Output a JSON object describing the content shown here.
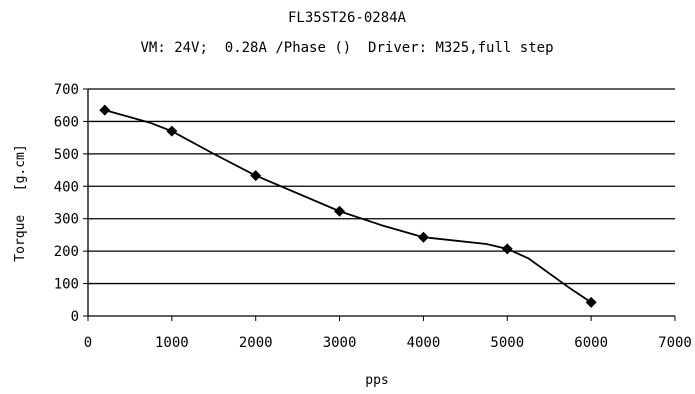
{
  "chart_data": {
    "type": "line",
    "title": "FL35ST26-0284A",
    "subtitle": "VM: 24V;  0.28A /Phase ()  Driver: M325,full step",
    "xlabel": "pps",
    "ylabel": "Torque   [g.cm]",
    "xlim": [
      0,
      7000
    ],
    "ylim": [
      0,
      700
    ],
    "xticks": [
      0,
      1000,
      2000,
      3000,
      4000,
      5000,
      6000,
      7000
    ],
    "yticks": [
      0,
      100,
      200,
      300,
      400,
      500,
      600,
      700
    ],
    "grid": "horizontal",
    "legend": "none",
    "series": [
      {
        "x": [
          200,
          1000,
          2000,
          3000,
          4000,
          5000,
          6000
        ],
        "y": [
          635,
          570,
          433,
          323,
          243,
          207,
          42
        ],
        "marker": "diamond",
        "color": "#000000"
      }
    ],
    "curve": {
      "x": [
        200,
        750,
        1000,
        1500,
        2000,
        3000,
        3500,
        4000,
        4750,
        5000,
        5250,
        5750,
        6000
      ],
      "y": [
        635,
        595,
        570,
        500,
        433,
        323,
        280,
        243,
        222,
        207,
        178,
        85,
        42
      ]
    }
  }
}
